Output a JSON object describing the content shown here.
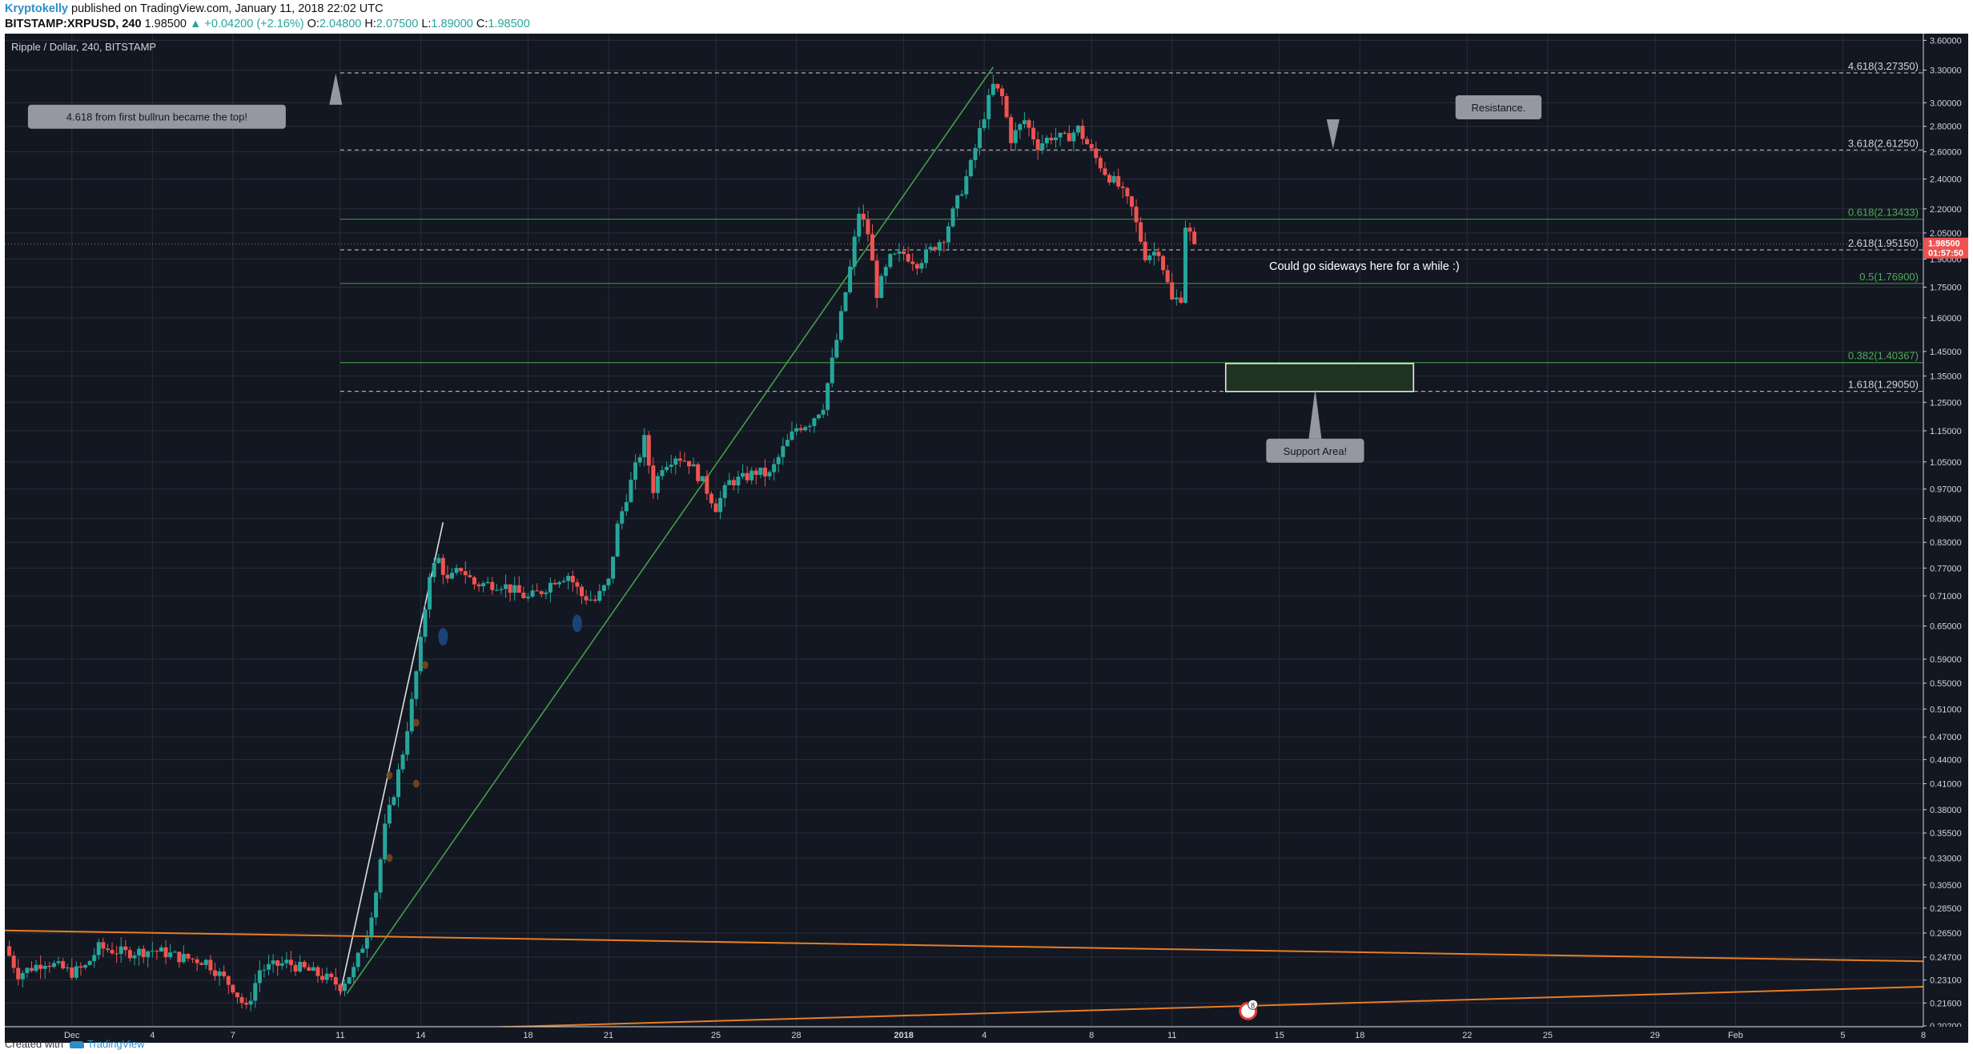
{
  "header": {
    "author": "Kryptokelly",
    "published": "published on TradingView.com, January 11, 2018 22:02 UTC",
    "symbol": "BITSTAMP:XRPUSD, 240",
    "last": "1.98500",
    "change": "▲ +0.04200 (+2.16%)",
    "open_label": "O:",
    "open": "2.04800",
    "high_label": "H:",
    "high": "2.07500",
    "low_label": "L:",
    "low": "1.89000",
    "close_label": "C:",
    "close": "1.98500"
  },
  "chart_title": "Ripple / Dollar, 240, BITSTAMP",
  "footer": {
    "created_with": "Created with",
    "brand": "TradingView"
  },
  "colors": {
    "background": "#131722",
    "grid": "#2a2e39",
    "up": "#26a69a",
    "down": "#ef5350",
    "fib_white": "#c8c8c8",
    "fib_green": "#4caf50",
    "trend_green": "#43a047",
    "trend_orange": "#e67e22",
    "price_tag": "#ef5350",
    "callout": "#9598a1"
  },
  "chart_data": {
    "type": "candlestick",
    "y_scale": "log",
    "ylim": [
      0.2,
      3.6
    ],
    "y_ticks": [
      "3.60000",
      "3.30000",
      "3.00000",
      "2.80000",
      "2.60000",
      "2.40000",
      "2.20000",
      "2.05000",
      "1.90000",
      "1.75000",
      "1.60000",
      "1.45000",
      "1.35000",
      "1.25000",
      "1.15000",
      "1.05000",
      "0.97000",
      "0.89000",
      "0.83000",
      "0.77000",
      "0.71000",
      "0.65000",
      "0.59000",
      "0.55000",
      "0.51000",
      "0.47000",
      "0.44000",
      "0.41000",
      "0.38000",
      "0.35500",
      "0.33000",
      "0.30500",
      "0.28500",
      "0.26500",
      "0.24700",
      "0.23100",
      "0.21600",
      "0.20200"
    ],
    "x_ticks": [
      {
        "label": "Dec",
        "date": "2017-12-01"
      },
      {
        "label": "4",
        "date": "2017-12-04"
      },
      {
        "label": "7",
        "date": "2017-12-07"
      },
      {
        "label": "11",
        "date": "2017-12-11"
      },
      {
        "label": "14",
        "date": "2017-12-14"
      },
      {
        "label": "18",
        "date": "2017-12-18"
      },
      {
        "label": "21",
        "date": "2017-12-21"
      },
      {
        "label": "25",
        "date": "2017-12-25"
      },
      {
        "label": "28",
        "date": "2017-12-28"
      },
      {
        "label": "2018",
        "date": "2018-01-01"
      },
      {
        "label": "4",
        "date": "2018-01-04"
      },
      {
        "label": "8",
        "date": "2018-01-08"
      },
      {
        "label": "11",
        "date": "2018-01-11"
      },
      {
        "label": "15",
        "date": "2018-01-15"
      },
      {
        "label": "18",
        "date": "2018-01-18"
      },
      {
        "label": "22",
        "date": "2018-01-22"
      },
      {
        "label": "25",
        "date": "2018-01-25"
      },
      {
        "label": "29",
        "date": "2018-01-29"
      },
      {
        "label": "Feb",
        "date": "2018-02-01"
      },
      {
        "label": "5",
        "date": "2018-02-05"
      },
      {
        "label": "8",
        "date": "2018-02-08"
      }
    ],
    "x_start": "2017-11-28T12:00",
    "x_end": "2018-02-08T00:00",
    "last_price": "1.98500",
    "countdown": "01:57:50",
    "fib_levels": [
      {
        "label": "4.618(3.27350)",
        "value": 3.2735,
        "color": "white",
        "dashed": true
      },
      {
        "label": "3.618(2.61250)",
        "value": 2.6125,
        "color": "white",
        "dashed": true
      },
      {
        "label": "0.618(2.13433)",
        "value": 2.13433,
        "color": "green",
        "dashed": false
      },
      {
        "label": "2.618(1.95150)",
        "value": 1.9515,
        "color": "white",
        "dashed": true
      },
      {
        "label": "0.5(1.76900)",
        "value": 1.769,
        "color": "green",
        "dashed": false
      },
      {
        "label": "0.382(1.40367)",
        "value": 1.40367,
        "color": "green",
        "dashed": false
      },
      {
        "label": "1.618(1.29050)",
        "value": 1.2905,
        "color": "white",
        "dashed": true
      }
    ],
    "fib_start": "2017-12-11T00:00",
    "annotations": [
      {
        "text": "4.618 from first bullrun became the top!",
        "date": "2017-12-04T04:00",
        "value": 2.88,
        "tail_date": "2017-12-10T20:00",
        "tail_value": 3.27
      },
      {
        "text": "Resistance.",
        "date": "2018-01-23T04:00",
        "value": 2.96,
        "tail_date": "2018-01-17T00:00",
        "tail_value": 2.62
      },
      {
        "text": "Support Area!",
        "date": "2018-01-16T08:00",
        "value": 1.085,
        "tail_date": "2018-01-16T08:00",
        "tail_value": 1.3
      }
    ],
    "plain_text": [
      {
        "text": "Could go sideways here for a while :)",
        "date": "2018-01-18T04:00",
        "value": 1.84
      }
    ],
    "support_box": {
      "date_from": "2018-01-13T00:00",
      "date_to": "2018-01-20T00:00",
      "top": 1.4,
      "bottom": 1.29
    },
    "trend_lines": [
      {
        "color": "white",
        "from": {
          "date": "2017-12-11T00:00",
          "value": 0.222
        },
        "to": {
          "date": "2017-12-14T20:00",
          "value": 0.88
        }
      },
      {
        "color": "green",
        "from": {
          "date": "2017-12-11T06:00",
          "value": 0.222
        },
        "to": {
          "date": "2018-01-04T08:00",
          "value": 3.33
        }
      },
      {
        "color": "orange",
        "from": {
          "date": "2017-11-28T12:00",
          "value": 0.267
        },
        "to": {
          "date": "2018-02-08T00:00",
          "value": 0.244
        }
      },
      {
        "color": "orange",
        "from": {
          "date": "2017-12-14T00:00",
          "value": 0.2
        },
        "to": {
          "date": "2018-02-08T00:00",
          "value": 0.2265
        }
      }
    ],
    "markers": [
      {
        "date": "2017-12-14T20:00",
        "value": 0.63,
        "color": "blue"
      },
      {
        "date": "2017-12-19T20:00",
        "value": 0.655,
        "color": "blue"
      },
      {
        "date": "2017-12-12T20:00",
        "value": 0.33,
        "color": "brown"
      },
      {
        "date": "2017-12-12T20:00",
        "value": 0.42,
        "color": "brown"
      },
      {
        "date": "2017-12-13T20:00",
        "value": 0.41,
        "color": "brown"
      },
      {
        "date": "2017-12-13T20:00",
        "value": 0.49,
        "color": "brown"
      },
      {
        "date": "2017-12-14T04:00",
        "value": 0.58,
        "color": "brown"
      }
    ],
    "event_badge": {
      "date": "2018-01-13T20:00",
      "value": 0.211,
      "count": "8"
    },
    "price_path": [
      [
        "2017-11-28T12:00",
        0.255
      ],
      [
        "2017-11-29T00:00",
        0.235
      ],
      [
        "2017-11-30T00:00",
        0.244
      ],
      [
        "2017-12-01T00:00",
        0.236
      ],
      [
        "2017-12-01T12:00",
        0.24
      ],
      [
        "2017-12-02T00:00",
        0.254
      ],
      [
        "2017-12-03T00:00",
        0.25
      ],
      [
        "2017-12-04T00:00",
        0.252
      ],
      [
        "2017-12-04T12:00",
        0.25
      ],
      [
        "2017-12-05T00:00",
        0.247
      ],
      [
        "2017-12-06T00:00",
        0.244
      ],
      [
        "2017-12-07T00:00",
        0.226
      ],
      [
        "2017-12-07T12:00",
        0.212
      ],
      [
        "2017-12-08T00:00",
        0.238
      ],
      [
        "2017-12-09T00:00",
        0.243
      ],
      [
        "2017-12-10T00:00",
        0.236
      ],
      [
        "2017-12-10T12:00",
        0.232
      ],
      [
        "2017-12-11T00:00",
        0.227
      ],
      [
        "2017-12-11T12:00",
        0.238
      ],
      [
        "2017-12-12T00:00",
        0.265
      ],
      [
        "2017-12-12T08:00",
        0.3
      ],
      [
        "2017-12-12T16:00",
        0.36
      ],
      [
        "2017-12-13T00:00",
        0.4
      ],
      [
        "2017-12-13T08:00",
        0.45
      ],
      [
        "2017-12-13T16:00",
        0.52
      ],
      [
        "2017-12-14T00:00",
        0.62
      ],
      [
        "2017-12-14T08:00",
        0.76
      ],
      [
        "2017-12-14T16:00",
        0.79
      ],
      [
        "2017-12-15T00:00",
        0.74
      ],
      [
        "2017-12-15T12:00",
        0.77
      ],
      [
        "2017-12-16T00:00",
        0.735
      ],
      [
        "2017-12-17T00:00",
        0.735
      ],
      [
        "2017-12-18T00:00",
        0.705
      ],
      [
        "2017-12-18T12:00",
        0.72
      ],
      [
        "2017-12-19T00:00",
        0.745
      ],
      [
        "2017-12-19T12:00",
        0.755
      ],
      [
        "2017-12-20T00:00",
        0.71
      ],
      [
        "2017-12-20T12:00",
        0.7
      ],
      [
        "2017-12-21T00:00",
        0.74
      ],
      [
        "2017-12-21T08:00",
        0.87
      ],
      [
        "2017-12-21T16:00",
        0.95
      ],
      [
        "2017-12-22T08:00",
        1.12
      ],
      [
        "2017-12-22T16:00",
        0.97
      ],
      [
        "2017-12-23T00:00",
        1.04
      ],
      [
        "2017-12-23T12:00",
        1.07
      ],
      [
        "2017-12-24T00:00",
        1.05
      ],
      [
        "2017-12-24T12:00",
        0.99
      ],
      [
        "2017-12-25T00:00",
        0.92
      ],
      [
        "2017-12-25T12:00",
        0.99
      ],
      [
        "2017-12-26T00:00",
        1.0
      ],
      [
        "2017-12-26T12:00",
        1.02
      ],
      [
        "2017-12-27T00:00",
        1.01
      ],
      [
        "2017-12-27T12:00",
        1.09
      ],
      [
        "2017-12-28T00:00",
        1.16
      ],
      [
        "2017-12-28T12:00",
        1.18
      ],
      [
        "2017-12-29T00:00",
        1.24
      ],
      [
        "2017-12-29T12:00",
        1.5
      ],
      [
        "2017-12-30T00:00",
        1.85
      ],
      [
        "2017-12-30T08:00",
        2.18
      ],
      [
        "2017-12-30T16:00",
        2.05
      ],
      [
        "2017-12-31T00:00",
        1.72
      ],
      [
        "2017-12-31T12:00",
        1.9
      ],
      [
        "2018-01-01T00:00",
        1.93
      ],
      [
        "2018-01-01T12:00",
        1.88
      ],
      [
        "2018-01-02T00:00",
        1.95
      ],
      [
        "2018-01-02T12:00",
        2.03
      ],
      [
        "2018-01-03T00:00",
        2.25
      ],
      [
        "2018-01-03T12:00",
        2.5
      ],
      [
        "2018-01-04T00:00",
        2.9
      ],
      [
        "2018-01-04T08:00",
        3.15
      ],
      [
        "2018-01-04T16:00",
        3.05
      ],
      [
        "2018-01-05T00:00",
        2.7
      ],
      [
        "2018-01-05T12:00",
        2.85
      ],
      [
        "2018-01-06T00:00",
        2.65
      ],
      [
        "2018-01-06T12:00",
        2.72
      ],
      [
        "2018-01-07T00:00",
        2.7
      ],
      [
        "2018-01-07T12:00",
        2.78
      ],
      [
        "2018-01-08T00:00",
        2.6
      ],
      [
        "2018-01-08T12:00",
        2.45
      ],
      [
        "2018-01-09T00:00",
        2.35
      ],
      [
        "2018-01-09T12:00",
        2.2
      ],
      [
        "2018-01-10T00:00",
        1.92
      ],
      [
        "2018-01-10T12:00",
        1.95
      ],
      [
        "2018-01-11T00:00",
        1.68
      ],
      [
        "2018-01-11T08:00",
        1.7
      ],
      [
        "2018-01-11T12:00",
        2.1
      ],
      [
        "2018-01-11T20:00",
        1.985
      ]
    ]
  }
}
